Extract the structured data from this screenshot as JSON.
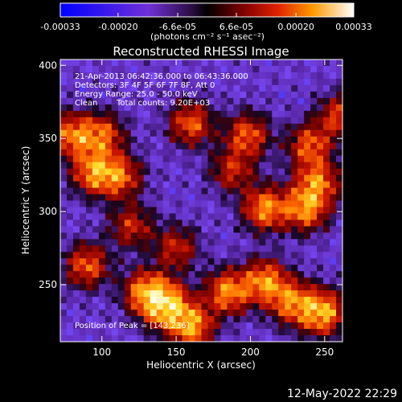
{
  "colorbar": {
    "ticks": [
      {
        "label": "-0.00033",
        "value": -0.00033
      },
      {
        "label": "-0.00020",
        "value": -0.0002
      },
      {
        "label": "-6.6e-05",
        "value": -6.6e-05
      },
      {
        "label": "6.6e-05",
        "value": 6.6e-05
      },
      {
        "label": "0.00020",
        "value": 0.0002
      },
      {
        "label": "0.00033",
        "value": 0.00033
      }
    ],
    "units": "(photons cm⁻² s⁻¹ asec⁻²)",
    "range": [
      -0.00033,
      0.00033
    ]
  },
  "chart_data": {
    "type": "heatmap",
    "title": "Reconstructed RHESSI Image",
    "xlabel": "Heliocentric X (arcsec)",
    "ylabel": "Heliocentric Y (arcsec)",
    "xlim": [
      72,
      262
    ],
    "ylim": [
      211,
      404
    ],
    "xticks": [
      100,
      150,
      200,
      250
    ],
    "yticks": [
      250,
      300,
      350,
      400
    ],
    "peak": {
      "x": 143,
      "y": 236
    },
    "hotspots": [
      {
        "x": 95,
        "y": 327,
        "amp": 1.0
      },
      {
        "x": 112,
        "y": 324,
        "amp": 0.8
      },
      {
        "x": 130,
        "y": 245,
        "amp": 1.0
      },
      {
        "x": 143,
        "y": 236,
        "amp": 1.4
      },
      {
        "x": 160,
        "y": 222,
        "amp": 1.1
      },
      {
        "x": 185,
        "y": 245,
        "amp": 1.0
      },
      {
        "x": 210,
        "y": 252,
        "amp": 1.0
      },
      {
        "x": 228,
        "y": 238,
        "amp": 0.9
      },
      {
        "x": 248,
        "y": 231,
        "amp": 1.2
      },
      {
        "x": 210,
        "y": 302,
        "amp": 1.0
      },
      {
        "x": 237,
        "y": 302,
        "amp": 1.0
      },
      {
        "x": 245,
        "y": 320,
        "amp": 0.9
      },
      {
        "x": 90,
        "y": 263,
        "amp": 0.8
      },
      {
        "x": 80,
        "y": 352,
        "amp": 0.9
      },
      {
        "x": 100,
        "y": 352,
        "amp": 0.8
      },
      {
        "x": 160,
        "y": 360,
        "amp": 0.8
      },
      {
        "x": 198,
        "y": 352,
        "amp": 0.8
      },
      {
        "x": 240,
        "y": 345,
        "amp": 0.8
      },
      {
        "x": 188,
        "y": 328,
        "amp": 0.6
      },
      {
        "x": 150,
        "y": 275,
        "amp": 0.6
      },
      {
        "x": 260,
        "y": 365,
        "amp": 0.7
      },
      {
        "x": 120,
        "y": 290,
        "amp": 0.6
      }
    ]
  },
  "info": {
    "time_range": "21-Apr-2013 06:42:36.000 to 06:43:36.000",
    "detectors": "Detectors: 3F 4F 5F 6F 7F 8F, Att 0",
    "energy": "Energy Range: 25.0 - 50.0 keV",
    "method": "Clean",
    "counts": "Total counts: 9.20E+03",
    "peak_label": "Position of Peak = [143,236]"
  },
  "footer": {
    "timestamp": "12-May-2022 22:29"
  }
}
